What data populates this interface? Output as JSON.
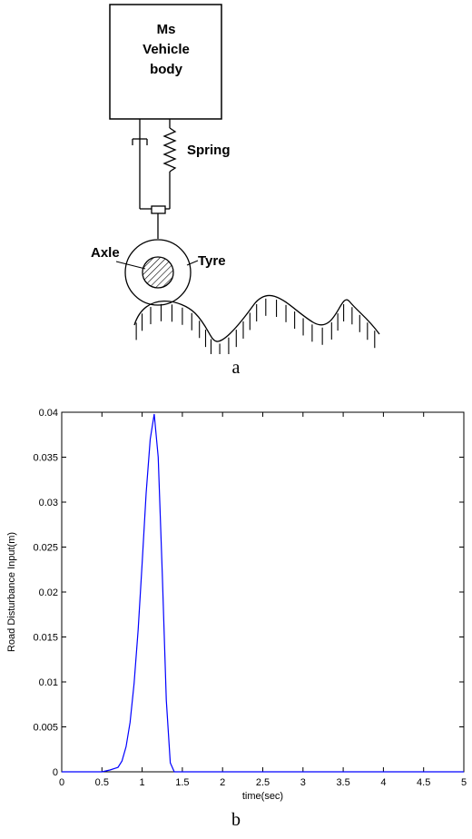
{
  "diagram": {
    "body_label_line1": "Ms",
    "body_label_line2": "Vehicle",
    "body_label_line3": "body",
    "spring_label": "Spring",
    "axle_label": "Axle",
    "tyre_label": "Tyre",
    "caption": "a"
  },
  "chart_data": {
    "type": "line",
    "caption": "b",
    "xlabel": "time(sec)",
    "ylabel": "Road Disturbance Input(m)",
    "xlim": [
      0,
      5
    ],
    "ylim": [
      0,
      0.04
    ],
    "x_ticks": [
      "0",
      "0.5",
      "1",
      "1.5",
      "2",
      "2.5",
      "3",
      "3.5",
      "4",
      "4.5",
      "5"
    ],
    "y_ticks": [
      "0",
      "0.005",
      "0.01",
      "0.015",
      "0.02",
      "0.025",
      "0.03",
      "0.035",
      "0.04"
    ],
    "grid": false,
    "series": [
      {
        "color": "#0000ff",
        "x": [
          0,
          0.5,
          0.6,
          0.7,
          0.75,
          0.8,
          0.85,
          0.9,
          0.95,
          1.0,
          1.05,
          1.1,
          1.15,
          1.2,
          1.25,
          1.3,
          1.35,
          1.4,
          2.0,
          3.0,
          4.0,
          5.0
        ],
        "y": [
          0,
          0,
          0.0002,
          0.0005,
          0.0012,
          0.0028,
          0.0055,
          0.0098,
          0.0158,
          0.0232,
          0.031,
          0.037,
          0.0398,
          0.035,
          0.022,
          0.008,
          0.001,
          0,
          0,
          0,
          0,
          0
        ]
      }
    ]
  }
}
